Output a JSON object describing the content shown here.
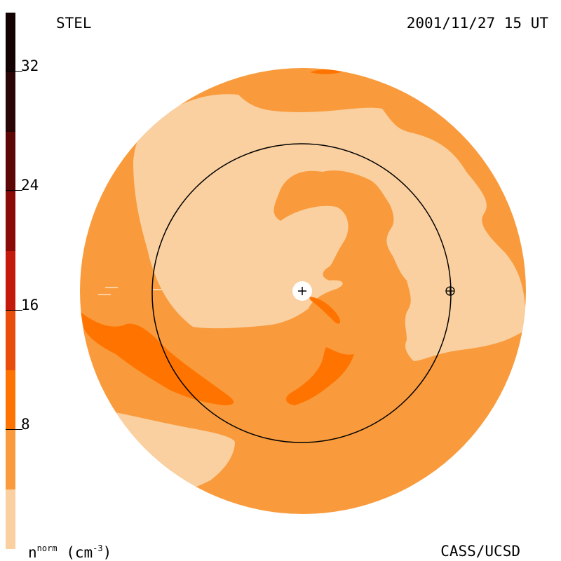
{
  "header": {
    "source": "STEL",
    "datetime": "2001/11/27 15 UT"
  },
  "footer": {
    "credit": "CASS/UCSD",
    "unit_base": "n",
    "unit_sup": "norm",
    "unit_rest": " (cm",
    "unit_exp": "-3",
    "unit_close": ")"
  },
  "color_scale": {
    "ticks": [
      "32",
      "24",
      "16",
      "8"
    ],
    "levels": [
      "#fad0a0",
      "#f99b3c",
      "#ff7400",
      "#e84d0c",
      "#c41a0c",
      "#8a0a08",
      "#5c0606",
      "#2a0505",
      "#140202"
    ]
  }
}
